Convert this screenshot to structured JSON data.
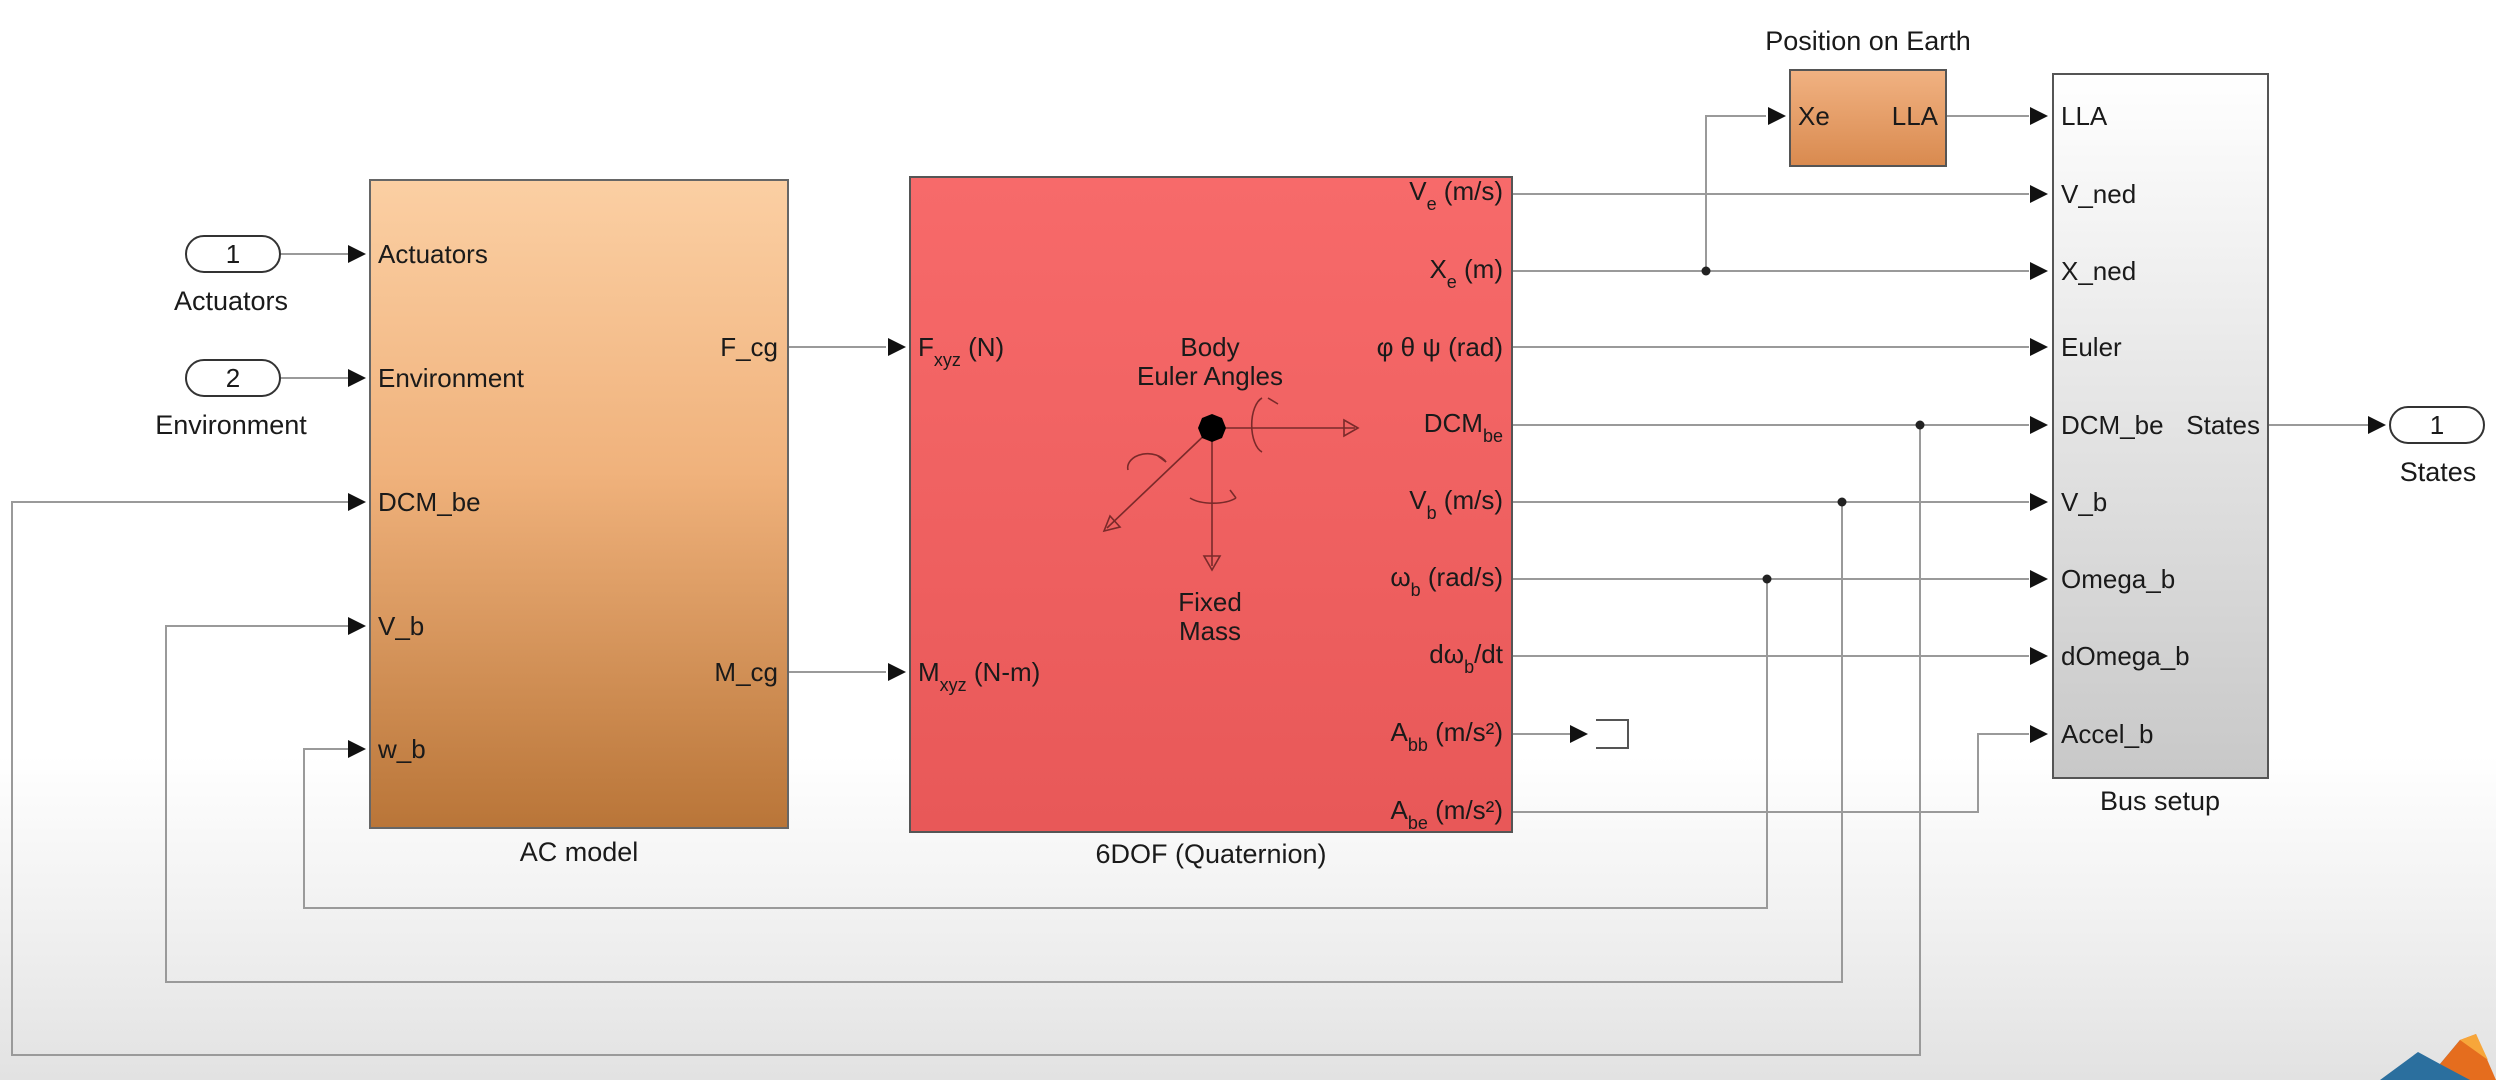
{
  "colors": {
    "ac_model_top": "#fbcfa3",
    "ac_model_bottom": "#b97538",
    "sixdof_top": "#f76a6a",
    "sixdof_bottom": "#e85858",
    "position_fill": "#e8a067",
    "bus_top": "#ffffff",
    "bus_bottom": "#c8c8c8",
    "wire": "#9a9a9a"
  },
  "inports": [
    {
      "number": "1",
      "name": "Actuators"
    },
    {
      "number": "2",
      "name": "Environment"
    }
  ],
  "outport": {
    "number": "1",
    "name": "States"
  },
  "ac_model": {
    "caption": "AC model",
    "inputs": [
      "Actuators",
      "Environment",
      "DCM_be",
      "V_b",
      "w_b"
    ],
    "outputs": [
      "F_cg",
      "M_cg"
    ]
  },
  "sixdof": {
    "caption": "6DOF (Quaternion)",
    "center_top": [
      "Body",
      "Euler Angles"
    ],
    "center_bottom": [
      "Fixed",
      "Mass"
    ],
    "inputs": [
      {
        "base": "F",
        "sub": "xyz",
        "rest": " (N)"
      },
      {
        "base": "M",
        "sub": "xyz",
        "rest": " (N-m)"
      }
    ],
    "outputs": [
      {
        "base": "V",
        "sub": "e",
        "rest": " (m/s)"
      },
      {
        "base": "X",
        "sub": "e",
        "rest": " (m)"
      },
      {
        "base": "φ θ ψ (rad)",
        "sub": "",
        "rest": ""
      },
      {
        "base": "DCM",
        "sub": "be",
        "rest": ""
      },
      {
        "base": "V",
        "sub": "b",
        "rest": " (m/s)"
      },
      {
        "base": "ω",
        "sub": "b",
        "rest": " (rad/s)"
      },
      {
        "base": "dω",
        "sub": "b",
        "rest": "/dt"
      },
      {
        "base": "A",
        "sub": "bb",
        "rest": " (m/s²)"
      },
      {
        "base": "A",
        "sub": "be",
        "rest": " (m/s²)"
      }
    ]
  },
  "position": {
    "caption": "Position on Earth",
    "input": "Xe",
    "output": "LLA"
  },
  "bus_setup": {
    "caption": "Bus setup",
    "inputs": [
      "LLA",
      "V_ned",
      "X_ned",
      "Euler",
      "DCM_be",
      "V_b",
      "Omega_b",
      "dOmega_b",
      "Accel_b"
    ],
    "output": "States"
  }
}
